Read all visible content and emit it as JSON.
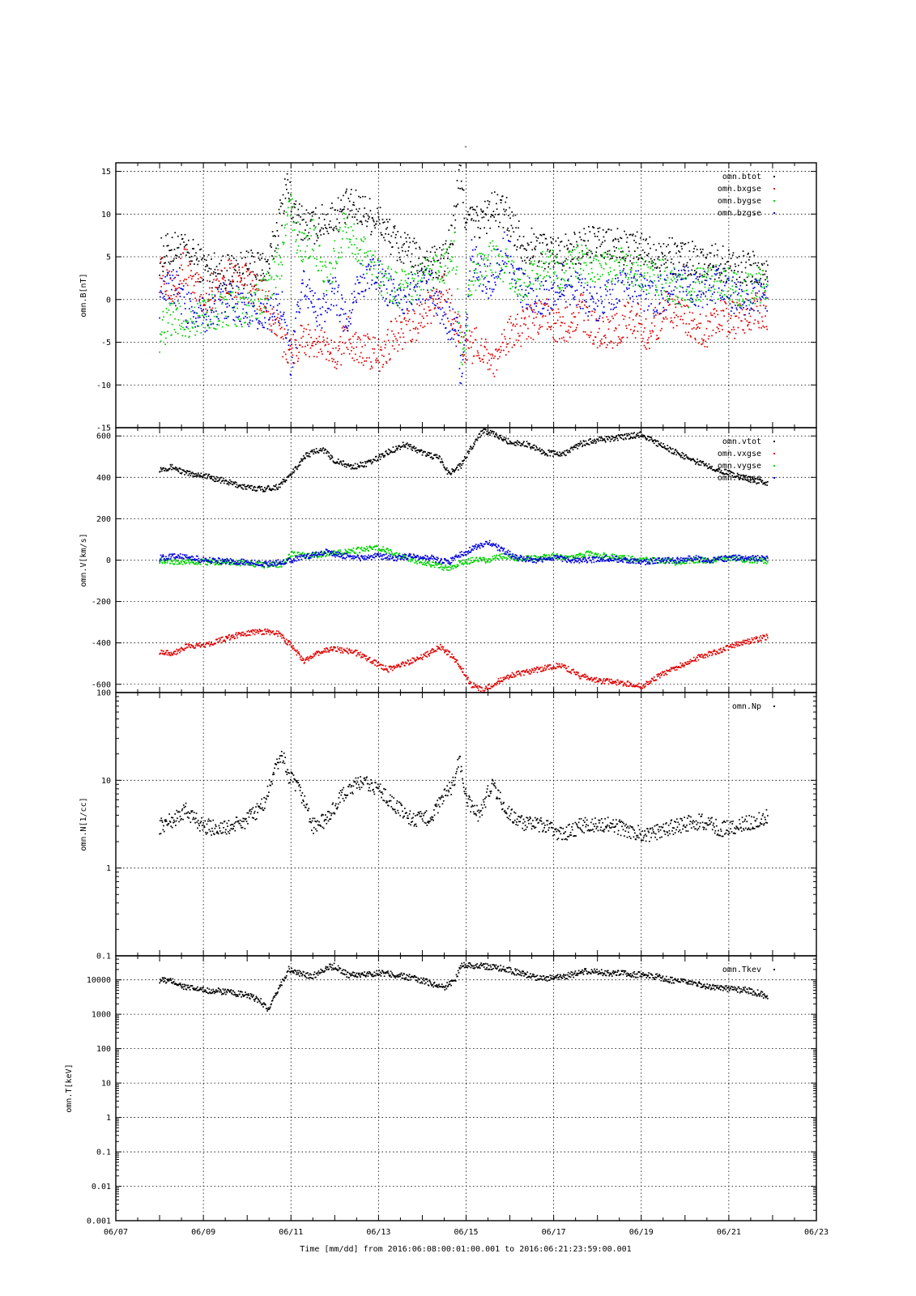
{
  "figure": {
    "title": "-",
    "x_axis_label": "Time [mm/dd]  from 2016:06:08:00:01:00.001  to  2016:06:21:23:59:00.001",
    "x_tick_labels": [
      "06/07",
      "06/09",
      "06/11",
      "06/13",
      "06/15",
      "06/17",
      "06/19",
      "06/21",
      "06/23"
    ]
  },
  "chart_data": [
    {
      "type": "scatter",
      "ylabel": "omn.B[nT]",
      "ylim": [
        -15,
        16
      ],
      "yticks": [
        -15,
        -10,
        -5,
        0,
        5,
        10,
        15
      ],
      "xlim": [
        7,
        23
      ],
      "grid": true,
      "legend_position": "top-right",
      "series": [
        {
          "name": "omn.btot",
          "color": "#000000",
          "x": [
            8.0,
            8.3,
            8.7,
            9.0,
            9.5,
            10.0,
            10.5,
            10.7,
            10.9,
            11.1,
            11.5,
            12.0,
            12.3,
            12.6,
            13.0,
            13.4,
            13.8,
            14.2,
            14.5,
            14.7,
            14.85,
            15.0,
            15.3,
            15.6,
            15.9,
            16.3,
            16.8,
            17.3,
            17.8,
            18.3,
            18.8,
            19.3,
            19.8,
            20.3,
            20.8,
            21.3,
            21.9
          ],
          "y": [
            5.0,
            6.0,
            5.3,
            3.8,
            3.2,
            3.5,
            4.0,
            8.5,
            13.5,
            9.5,
            8.5,
            9.8,
            10.8,
            10.6,
            9.2,
            6.5,
            5.0,
            4.0,
            4.5,
            8.0,
            14.5,
            9.5,
            9.0,
            10.5,
            10.2,
            6.5,
            5.8,
            5.5,
            6.5,
            6.3,
            5.8,
            5.5,
            5.0,
            4.5,
            4.3,
            3.8,
            3.0
          ]
        },
        {
          "name": "omn.bxgse",
          "color": "#e00000",
          "x": [
            8.0,
            8.3,
            8.6,
            9.0,
            9.5,
            10.0,
            10.4,
            10.8,
            11.0,
            11.3,
            11.7,
            12.0,
            12.3,
            12.6,
            13.0,
            13.4,
            13.8,
            14.2,
            14.5,
            14.8,
            15.0,
            15.3,
            15.7,
            16.0,
            16.4,
            16.8,
            17.2,
            17.6,
            18.0,
            18.4,
            18.8,
            19.2,
            19.6,
            20.0,
            20.4,
            20.8,
            21.2,
            21.6,
            21.9
          ],
          "y": [
            3.0,
            2.0,
            4.0,
            0.0,
            2.5,
            2.0,
            0.0,
            -5.0,
            -6.0,
            -4.5,
            -5.5,
            -7.0,
            -4.0,
            -6.0,
            -6.5,
            -4.0,
            -3.0,
            -1.0,
            1.0,
            -3.0,
            -6.0,
            -5.0,
            -7.5,
            -4.0,
            -3.0,
            -2.0,
            -3.5,
            -1.0,
            -4.0,
            -3.5,
            -2.0,
            -4.0,
            -1.0,
            -2.0,
            -4.0,
            -2.0,
            -2.5,
            -1.0,
            -1.5
          ]
        },
        {
          "name": "omn.bygse",
          "color": "#00d000",
          "x": [
            8.0,
            8.3,
            8.6,
            9.0,
            9.5,
            10.0,
            10.4,
            10.8,
            10.95,
            11.2,
            11.5,
            11.8,
            12.2,
            12.6,
            13.0,
            13.4,
            13.8,
            14.2,
            14.5,
            14.75,
            14.9,
            15.1,
            15.5,
            15.9,
            16.3,
            16.8,
            17.2,
            17.6,
            18.0,
            18.5,
            19.0,
            19.5,
            20.0,
            20.4,
            20.8,
            21.2,
            21.6,
            21.9
          ],
          "y": [
            -4.0,
            -2.0,
            -3.0,
            -2.0,
            -1.0,
            -1.0,
            0.5,
            5.0,
            11.5,
            6.0,
            7.5,
            2.0,
            8.0,
            6.0,
            3.0,
            1.0,
            2.0,
            3.0,
            4.0,
            6.0,
            -8.0,
            2.0,
            5.0,
            4.0,
            2.0,
            4.0,
            3.0,
            4.5,
            3.0,
            4.0,
            3.0,
            2.5,
            1.0,
            2.0,
            2.0,
            1.0,
            1.5,
            2.0
          ]
        },
        {
          "name": "omn.bzgse",
          "color": "#0000e0",
          "x": [
            8.0,
            8.3,
            8.6,
            9.0,
            9.5,
            10.0,
            10.4,
            10.8,
            11.0,
            11.3,
            11.6,
            12.0,
            12.3,
            12.6,
            13.0,
            13.4,
            13.8,
            14.2,
            14.5,
            14.8,
            14.9,
            15.1,
            15.5,
            15.9,
            16.3,
            16.8,
            17.2,
            17.6,
            18.0,
            18.4,
            18.8,
            19.2,
            19.6,
            20.0,
            20.4,
            20.8,
            21.2,
            21.6,
            21.9
          ],
          "y": [
            0.0,
            2.0,
            -1.0,
            -2.0,
            0.0,
            -1.0,
            -2.0,
            -1.0,
            -7.0,
            2.0,
            -2.0,
            1.0,
            -3.0,
            2.0,
            3.0,
            0.0,
            1.0,
            2.0,
            -2.0,
            -4.0,
            -10.0,
            5.0,
            2.0,
            6.0,
            1.0,
            0.0,
            2.0,
            1.0,
            -1.0,
            1.0,
            2.0,
            0.0,
            1.0,
            2.0,
            1.0,
            2.0,
            0.0,
            0.5,
            0.0
          ]
        }
      ]
    },
    {
      "type": "scatter",
      "ylabel": "omn.V[km/s]",
      "ylim": [
        -640,
        640
      ],
      "yticks": [
        -600,
        -400,
        -200,
        0,
        200,
        400,
        600
      ],
      "xlim": [
        7,
        23
      ],
      "grid": true,
      "legend_position": "top-right",
      "series": [
        {
          "name": "omn.vtot",
          "color": "#000000",
          "x": [
            8.0,
            8.3,
            8.6,
            9.0,
            9.5,
            10.0,
            10.4,
            10.7,
            11.0,
            11.3,
            11.7,
            12.0,
            12.4,
            12.8,
            13.2,
            13.6,
            14.0,
            14.4,
            14.6,
            14.9,
            15.1,
            15.4,
            15.7,
            16.0,
            16.4,
            16.8,
            17.2,
            17.6,
            18.0,
            18.4,
            18.8,
            19.0,
            19.4,
            19.8,
            20.2,
            20.6,
            21.0,
            21.5,
            21.9
          ],
          "y": [
            440,
            450,
            420,
            410,
            380,
            350,
            345,
            355,
            410,
            500,
            540,
            480,
            450,
            470,
            520,
            560,
            520,
            490,
            420,
            460,
            540,
            630,
            600,
            570,
            560,
            520,
            510,
            560,
            580,
            590,
            600,
            610,
            560,
            520,
            480,
            450,
            420,
            390,
            370
          ]
        },
        {
          "name": "omn.vxgse",
          "color": "#e00000",
          "x": [
            8.0,
            8.3,
            8.6,
            9.0,
            9.5,
            10.0,
            10.4,
            10.7,
            11.0,
            11.3,
            11.7,
            12.0,
            12.4,
            12.8,
            13.2,
            13.6,
            14.0,
            14.4,
            14.6,
            14.9,
            15.1,
            15.4,
            15.7,
            16.0,
            16.4,
            16.8,
            17.2,
            17.6,
            18.0,
            18.4,
            18.8,
            19.0,
            19.4,
            19.8,
            20.2,
            20.6,
            21.0,
            21.5,
            21.9
          ],
          "y": [
            -440,
            -450,
            -420,
            -410,
            -380,
            -350,
            -345,
            -355,
            -410,
            -490,
            -440,
            -430,
            -440,
            -480,
            -530,
            -500,
            -470,
            -420,
            -450,
            -520,
            -600,
            -630,
            -590,
            -560,
            -540,
            -520,
            -510,
            -560,
            -580,
            -590,
            -600,
            -610,
            -560,
            -520,
            -480,
            -450,
            -420,
            -390,
            -370
          ]
        },
        {
          "name": "omn.vygse",
          "color": "#00d000",
          "x": [
            8.0,
            8.5,
            9.0,
            9.5,
            10.0,
            10.4,
            10.8,
            11.0,
            11.4,
            11.8,
            12.2,
            12.6,
            13.0,
            13.4,
            13.8,
            14.2,
            14.6,
            14.9,
            15.2,
            15.5,
            15.8,
            16.2,
            16.6,
            17.0,
            17.4,
            17.8,
            18.2,
            18.6,
            19.0,
            19.4,
            19.8,
            20.2,
            20.6,
            21.0,
            21.5,
            21.9
          ],
          "y": [
            0,
            -10,
            -10,
            -10,
            -15,
            -25,
            -20,
            30,
            20,
            30,
            40,
            50,
            60,
            30,
            0,
            -20,
            -40,
            -10,
            0,
            0,
            20,
            10,
            10,
            20,
            10,
            30,
            20,
            10,
            0,
            0,
            -10,
            0,
            0,
            10,
            0,
            -5
          ]
        },
        {
          "name": "omn.vzgse",
          "color": "#0000e0",
          "x": [
            8.0,
            8.5,
            9.0,
            9.5,
            10.0,
            10.4,
            10.8,
            11.0,
            11.4,
            11.8,
            12.2,
            12.6,
            13.0,
            13.4,
            13.8,
            14.2,
            14.6,
            14.9,
            15.2,
            15.5,
            15.8,
            16.2,
            16.6,
            17.0,
            17.4,
            17.8,
            18.2,
            18.6,
            19.0,
            19.4,
            19.8,
            20.2,
            20.6,
            21.0,
            21.5,
            21.9
          ],
          "y": [
            10,
            20,
            0,
            -5,
            -10,
            -20,
            -10,
            0,
            20,
            40,
            20,
            10,
            20,
            10,
            20,
            10,
            -10,
            30,
            60,
            90,
            50,
            10,
            0,
            10,
            0,
            0,
            10,
            0,
            -10,
            0,
            0,
            10,
            0,
            10,
            10,
            5
          ]
        }
      ]
    },
    {
      "type": "scatter",
      "ylabel": "omn.N[1/cc]",
      "yscale": "log",
      "ylim": [
        0.1,
        100
      ],
      "yticks": [
        0.1,
        1,
        10,
        100
      ],
      "xlim": [
        7,
        23
      ],
      "grid": true,
      "legend_position": "top-right",
      "series": [
        {
          "name": "omn.Np",
          "color": "#000000",
          "x": [
            8.0,
            8.3,
            8.6,
            9.0,
            9.5,
            10.0,
            10.4,
            10.6,
            10.8,
            10.95,
            11.1,
            11.3,
            11.5,
            11.8,
            12.2,
            12.6,
            13.0,
            13.4,
            13.8,
            14.2,
            14.5,
            14.7,
            14.85,
            15.0,
            15.3,
            15.6,
            15.9,
            16.3,
            16.8,
            17.2,
            17.6,
            18.0,
            18.4,
            18.8,
            19.2,
            19.6,
            20.0,
            20.4,
            20.8,
            21.2,
            21.6,
            21.9
          ],
          "y": [
            3.0,
            3.5,
            4.5,
            3.0,
            2.8,
            3.5,
            5.5,
            12.0,
            20.0,
            11.0,
            9.0,
            6.0,
            3.0,
            3.5,
            7.0,
            9.5,
            8.0,
            5.0,
            3.5,
            3.8,
            6.5,
            9.0,
            18.0,
            6.0,
            4.0,
            9.5,
            4.5,
            3.2,
            3.0,
            2.4,
            3.0,
            3.2,
            3.0,
            2.6,
            2.4,
            2.8,
            3.2,
            3.4,
            2.8,
            3.0,
            3.4,
            4.0
          ]
        }
      ]
    },
    {
      "type": "scatter",
      "ylabel": "omn.T[keV]",
      "yscale": "log",
      "ylim": [
        0.001,
        50000
      ],
      "yticks": [
        0.001,
        0.01,
        0.1,
        1,
        10,
        100,
        1000,
        10000
      ],
      "xlim": [
        7,
        23
      ],
      "grid": true,
      "legend_position": "top-right",
      "series": [
        {
          "name": "omn.Tkev",
          "color": "#000000",
          "x": [
            8.0,
            8.3,
            8.6,
            9.0,
            9.5,
            10.0,
            10.3,
            10.5,
            10.7,
            10.95,
            11.2,
            11.5,
            11.8,
            12.0,
            12.3,
            12.6,
            13.0,
            13.4,
            13.8,
            14.2,
            14.5,
            14.75,
            14.9,
            15.2,
            15.5,
            15.8,
            16.2,
            16.6,
            17.0,
            17.4,
            17.8,
            18.2,
            18.6,
            19.0,
            19.4,
            19.8,
            20.2,
            20.6,
            21.0,
            21.4,
            21.7,
            21.9
          ],
          "y": [
            10000,
            9000,
            6000,
            5000,
            4500,
            3500,
            2500,
            1300,
            5000,
            20000,
            15000,
            13000,
            22000,
            25000,
            14000,
            14000,
            16000,
            14000,
            11000,
            8000,
            6000,
            10000,
            28000,
            26000,
            24000,
            22000,
            16000,
            12000,
            11000,
            14000,
            18000,
            16000,
            15000,
            14000,
            12000,
            9000,
            8000,
            6000,
            5500,
            5000,
            4000,
            3000
          ]
        }
      ]
    }
  ]
}
